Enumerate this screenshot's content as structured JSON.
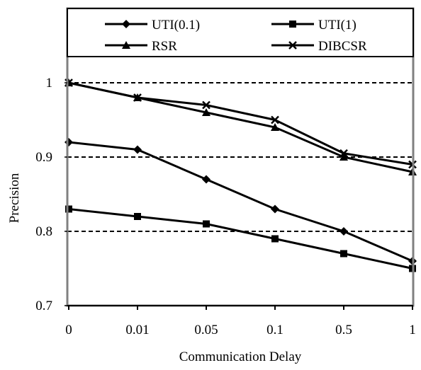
{
  "chart_data": {
    "type": "line",
    "xlabel": "Communication Delay",
    "ylabel": "Precision",
    "categories": [
      "0",
      "0.01",
      "0.05",
      "0.1",
      "0.5",
      "1"
    ],
    "ylim": [
      0.7,
      1.0
    ],
    "yticks": [
      0.7,
      0.8,
      0.9,
      1.0
    ],
    "ytick_labels": [
      "0.7",
      "0.8",
      "0.9",
      "1"
    ],
    "grid": "horizontal dashed at 0.8, 0.9, 1",
    "legend_position": "top",
    "series": [
      {
        "name": "UTI(0.1)",
        "marker": "diamond",
        "values": [
          0.92,
          0.91,
          0.87,
          0.83,
          0.8,
          0.76
        ]
      },
      {
        "name": "UTI(1)",
        "marker": "square",
        "values": [
          0.83,
          0.82,
          0.81,
          0.79,
          0.77,
          0.75
        ]
      },
      {
        "name": "RSR",
        "marker": "triangle",
        "values": [
          1.0,
          0.98,
          0.96,
          0.94,
          0.9,
          0.88
        ]
      },
      {
        "name": "DIBCSR",
        "marker": "x",
        "values": [
          1.0,
          0.98,
          0.97,
          0.95,
          0.905,
          0.89
        ]
      }
    ],
    "colors": {
      "line": "#000000",
      "axis_frame": "#808080",
      "grid": "#000000",
      "background": "#ffffff"
    }
  }
}
